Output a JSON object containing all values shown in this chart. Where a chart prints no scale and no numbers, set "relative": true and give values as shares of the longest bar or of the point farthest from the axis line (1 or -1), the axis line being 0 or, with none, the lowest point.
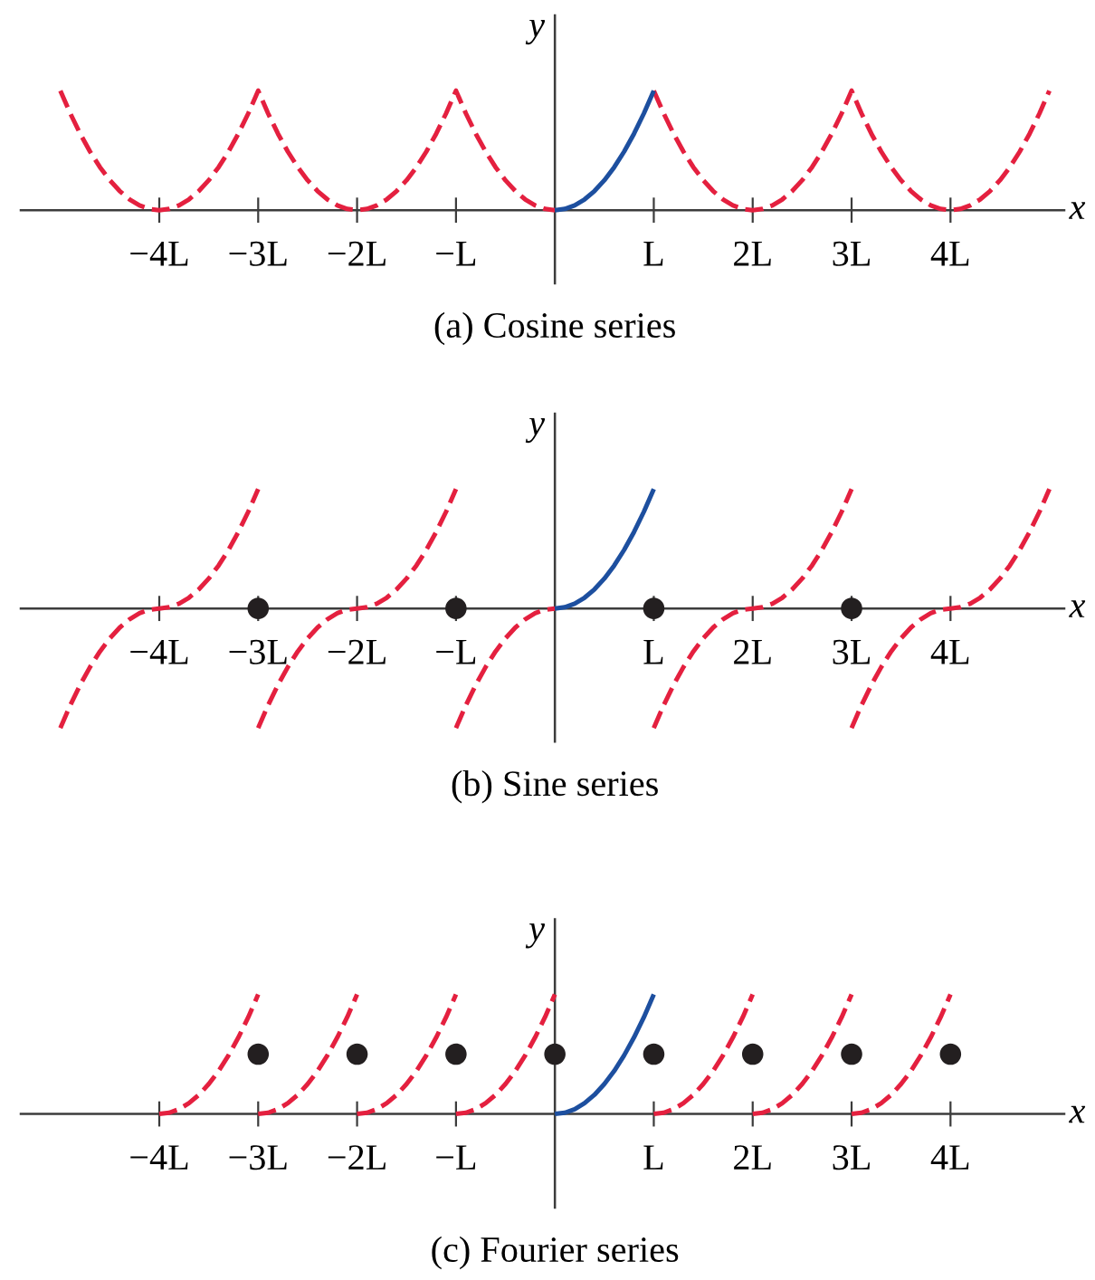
{
  "chart_data": [
    {
      "type": "line",
      "title": "(a) Cosine series",
      "xlabel": "x",
      "ylabel": "y",
      "relative": true,
      "tick_labels": "x",
      "xlim": [
        -5.4,
        5.15
      ],
      "xticks": [
        {
          "value": -4,
          "label": "−4L"
        },
        {
          "value": -3,
          "label": "−3L"
        },
        {
          "value": -2,
          "label": "−2L"
        },
        {
          "value": -1,
          "label": "−L"
        },
        {
          "value": 1,
          "label": "L"
        },
        {
          "value": 2,
          "label": "2L"
        },
        {
          "value": 3,
          "label": "3L"
        },
        {
          "value": 4,
          "label": "4L"
        }
      ],
      "series": [
        {
          "color": "#e4203f",
          "line_style": "dashed",
          "x": [
            -5,
            -4.9,
            -4.8,
            -4.7,
            -4.6,
            -4.5,
            -4.4,
            -4.3,
            -4.2,
            -4.1,
            -4,
            -3.9,
            -3.8,
            -3.7,
            -3.6,
            -3.5,
            -3.4,
            -3.3,
            -3.2,
            -3.1,
            -3,
            -2.9,
            -2.8,
            -2.7,
            -2.6,
            -2.5,
            -2.4,
            -2.3,
            -2.2,
            -2.1,
            -2,
            -1.9,
            -1.8,
            -1.7,
            -1.6,
            -1.5,
            -1.4,
            -1.3,
            -1.2,
            -1.1,
            -1,
            -0.9,
            -0.8,
            -0.7,
            -0.6,
            -0.5,
            -0.4,
            -0.3,
            -0.2,
            -0.1,
            0
          ],
          "values": [
            1,
            0.81,
            0.64,
            0.49,
            0.36,
            0.25,
            0.16,
            0.09,
            0.04,
            0.01,
            0,
            0.01,
            0.04,
            0.09,
            0.16,
            0.25,
            0.36,
            0.49,
            0.64,
            0.81,
            1,
            0.81,
            0.64,
            0.49,
            0.36,
            0.25,
            0.16,
            0.09,
            0.04,
            0.01,
            0,
            0.01,
            0.04,
            0.09,
            0.16,
            0.25,
            0.36,
            0.49,
            0.64,
            0.81,
            1,
            0.81,
            0.64,
            0.49,
            0.36,
            0.25,
            0.16,
            0.09,
            0.04,
            0.01,
            0
          ]
        },
        {
          "color": "#e4203f",
          "line_style": "dashed",
          "x": [
            1,
            1.1,
            1.2,
            1.3,
            1.4,
            1.5,
            1.6,
            1.7,
            1.8,
            1.9,
            2,
            2.1,
            2.2,
            2.3,
            2.4,
            2.5,
            2.6,
            2.7,
            2.8,
            2.9,
            3,
            3.1,
            3.2,
            3.3,
            3.4,
            3.5,
            3.6,
            3.7,
            3.8,
            3.9,
            4,
            4.1,
            4.2,
            4.3,
            4.4,
            4.5,
            4.6,
            4.7,
            4.8,
            4.9,
            5
          ],
          "values": [
            1,
            0.81,
            0.64,
            0.49,
            0.36,
            0.25,
            0.16,
            0.09,
            0.04,
            0.01,
            0,
            0.01,
            0.04,
            0.09,
            0.16,
            0.25,
            0.36,
            0.49,
            0.64,
            0.81,
            1,
            0.81,
            0.64,
            0.49,
            0.36,
            0.25,
            0.16,
            0.09,
            0.04,
            0.01,
            0,
            0.01,
            0.04,
            0.09,
            0.16,
            0.25,
            0.36,
            0.49,
            0.64,
            0.81,
            1
          ]
        },
        {
          "color": "#1d4f9f",
          "line_style": "solid",
          "x": [
            0,
            0.1,
            0.2,
            0.3,
            0.4,
            0.5,
            0.6,
            0.7,
            0.8,
            0.9,
            1
          ],
          "values": [
            0,
            0.01,
            0.04,
            0.09,
            0.16,
            0.25,
            0.36,
            0.49,
            0.64,
            0.81,
            1
          ]
        }
      ]
    },
    {
      "type": "line",
      "title": "(b) Sine series",
      "xlabel": "x",
      "ylabel": "y",
      "relative": true,
      "tick_labels": "x",
      "xlim": [
        -5.4,
        5.15
      ],
      "xticks": [
        {
          "value": -4,
          "label": "−4L"
        },
        {
          "value": -3,
          "label": "−3L"
        },
        {
          "value": -2,
          "label": "−2L"
        },
        {
          "value": -1,
          "label": "−L"
        },
        {
          "value": 1,
          "label": "L"
        },
        {
          "value": 2,
          "label": "2L"
        },
        {
          "value": 3,
          "label": "3L"
        },
        {
          "value": 4,
          "label": "4L"
        }
      ],
      "series": [
        {
          "color": "#e4203f",
          "line_style": "dashed",
          "x": [
            -5,
            -4.9,
            -4.8,
            -4.7,
            -4.6,
            -4.5,
            -4.4,
            -4.3,
            -4.2,
            -4.1,
            -4,
            -3.9,
            -3.8,
            -3.7,
            -3.6,
            -3.5,
            -3.4,
            -3.3,
            -3.2,
            -3.1,
            -3
          ],
          "values": [
            -1,
            -0.81,
            -0.64,
            -0.49,
            -0.36,
            -0.25,
            -0.16,
            -0.09,
            -0.04,
            -0.01,
            0,
            0.01,
            0.04,
            0.09,
            0.16,
            0.25,
            0.36,
            0.49,
            0.64,
            0.81,
            1
          ]
        },
        {
          "color": "#e4203f",
          "line_style": "dashed",
          "x": [
            -3,
            -2.9,
            -2.8,
            -2.7,
            -2.6,
            -2.5,
            -2.4,
            -2.3,
            -2.2,
            -2.1,
            -2,
            -1.9,
            -1.8,
            -1.7,
            -1.6,
            -1.5,
            -1.4,
            -1.3,
            -1.2,
            -1.1,
            -1
          ],
          "values": [
            -1,
            -0.81,
            -0.64,
            -0.49,
            -0.36,
            -0.25,
            -0.16,
            -0.09,
            -0.04,
            -0.01,
            0,
            0.01,
            0.04,
            0.09,
            0.16,
            0.25,
            0.36,
            0.49,
            0.64,
            0.81,
            1
          ]
        },
        {
          "color": "#e4203f",
          "line_style": "dashed",
          "x": [
            -1,
            -0.9,
            -0.8,
            -0.7,
            -0.6,
            -0.5,
            -0.4,
            -0.3,
            -0.2,
            -0.1,
            0
          ],
          "values": [
            -1,
            -0.81,
            -0.64,
            -0.49,
            -0.36,
            -0.25,
            -0.16,
            -0.09,
            -0.04,
            -0.01,
            0
          ]
        },
        {
          "color": "#e4203f",
          "line_style": "dashed",
          "x": [
            1,
            1.1,
            1.2,
            1.3,
            1.4,
            1.5,
            1.6,
            1.7,
            1.8,
            1.9,
            2,
            2.1,
            2.2,
            2.3,
            2.4,
            2.5,
            2.6,
            2.7,
            2.8,
            2.9,
            3
          ],
          "values": [
            -1,
            -0.81,
            -0.64,
            -0.49,
            -0.36,
            -0.25,
            -0.16,
            -0.09,
            -0.04,
            -0.01,
            0,
            0.01,
            0.04,
            0.09,
            0.16,
            0.25,
            0.36,
            0.49,
            0.64,
            0.81,
            1
          ]
        },
        {
          "color": "#e4203f",
          "line_style": "dashed",
          "x": [
            3,
            3.1,
            3.2,
            3.3,
            3.4,
            3.5,
            3.6,
            3.7,
            3.8,
            3.9,
            4,
            4.1,
            4.2,
            4.3,
            4.4,
            4.5,
            4.6,
            4.7,
            4.8,
            4.9,
            5
          ],
          "values": [
            -1,
            -0.81,
            -0.64,
            -0.49,
            -0.36,
            -0.25,
            -0.16,
            -0.09,
            -0.04,
            -0.01,
            0,
            0.01,
            0.04,
            0.09,
            0.16,
            0.25,
            0.36,
            0.49,
            0.64,
            0.81,
            1
          ]
        },
        {
          "color": "#1d4f9f",
          "line_style": "solid",
          "x": [
            0,
            0.1,
            0.2,
            0.3,
            0.4,
            0.5,
            0.6,
            0.7,
            0.8,
            0.9,
            1
          ],
          "values": [
            0,
            0.01,
            0.04,
            0.09,
            0.16,
            0.25,
            0.36,
            0.49,
            0.64,
            0.81,
            1
          ]
        },
        {
          "type": "scatter",
          "marker": "circle",
          "color": "#231f20",
          "x": [
            -3,
            -1,
            1,
            3
          ],
          "values": [
            0,
            0,
            0,
            0
          ]
        }
      ]
    },
    {
      "type": "line",
      "title": "(c) Fourier series",
      "xlabel": "x",
      "ylabel": "y",
      "relative": true,
      "tick_labels": "x",
      "xlim": [
        -5.4,
        5.15
      ],
      "xticks": [
        {
          "value": -4,
          "label": "−4L"
        },
        {
          "value": -3,
          "label": "−3L"
        },
        {
          "value": -2,
          "label": "−2L"
        },
        {
          "value": -1,
          "label": "−L"
        },
        {
          "value": 1,
          "label": "L"
        },
        {
          "value": 2,
          "label": "2L"
        },
        {
          "value": 3,
          "label": "3L"
        },
        {
          "value": 4,
          "label": "4L"
        }
      ],
      "series": [
        {
          "color": "#e4203f",
          "line_style": "dashed",
          "x": [
            -4,
            -3.9,
            -3.8,
            -3.7,
            -3.6,
            -3.5,
            -3.4,
            -3.3,
            -3.2,
            -3.1,
            -3
          ],
          "values": [
            0,
            0.01,
            0.04,
            0.09,
            0.16,
            0.25,
            0.36,
            0.49,
            0.64,
            0.81,
            1
          ]
        },
        {
          "color": "#e4203f",
          "line_style": "dashed",
          "x": [
            -3,
            -2.9,
            -2.8,
            -2.7,
            -2.6,
            -2.5,
            -2.4,
            -2.3,
            -2.2,
            -2.1,
            -2
          ],
          "values": [
            0,
            0.01,
            0.04,
            0.09,
            0.16,
            0.25,
            0.36,
            0.49,
            0.64,
            0.81,
            1
          ]
        },
        {
          "color": "#e4203f",
          "line_style": "dashed",
          "x": [
            -2,
            -1.9,
            -1.8,
            -1.7,
            -1.6,
            -1.5,
            -1.4,
            -1.3,
            -1.2,
            -1.1,
            -1
          ],
          "values": [
            0,
            0.01,
            0.04,
            0.09,
            0.16,
            0.25,
            0.36,
            0.49,
            0.64,
            0.81,
            1
          ]
        },
        {
          "color": "#e4203f",
          "line_style": "dashed",
          "x": [
            -1,
            -0.9,
            -0.8,
            -0.7,
            -0.6,
            -0.5,
            -0.4,
            -0.3,
            -0.2,
            -0.1,
            0
          ],
          "values": [
            0,
            0.01,
            0.04,
            0.09,
            0.16,
            0.25,
            0.36,
            0.49,
            0.64,
            0.81,
            1
          ]
        },
        {
          "color": "#e4203f",
          "line_style": "dashed",
          "x": [
            1,
            1.1,
            1.2,
            1.3,
            1.4,
            1.5,
            1.6,
            1.7,
            1.8,
            1.9,
            2
          ],
          "values": [
            0,
            0.01,
            0.04,
            0.09,
            0.16,
            0.25,
            0.36,
            0.49,
            0.64,
            0.81,
            1
          ]
        },
        {
          "color": "#e4203f",
          "line_style": "dashed",
          "x": [
            2,
            2.1,
            2.2,
            2.3,
            2.4,
            2.5,
            2.6,
            2.7,
            2.8,
            2.9,
            3
          ],
          "values": [
            0,
            0.01,
            0.04,
            0.09,
            0.16,
            0.25,
            0.36,
            0.49,
            0.64,
            0.81,
            1
          ]
        },
        {
          "color": "#e4203f",
          "line_style": "dashed",
          "x": [
            3,
            3.1,
            3.2,
            3.3,
            3.4,
            3.5,
            3.6,
            3.7,
            3.8,
            3.9,
            4
          ],
          "values": [
            0,
            0.01,
            0.04,
            0.09,
            0.16,
            0.25,
            0.36,
            0.49,
            0.64,
            0.81,
            1
          ]
        },
        {
          "color": "#1d4f9f",
          "line_style": "solid",
          "x": [
            0,
            0.1,
            0.2,
            0.3,
            0.4,
            0.5,
            0.6,
            0.7,
            0.8,
            0.9,
            1
          ],
          "values": [
            0,
            0.01,
            0.04,
            0.09,
            0.16,
            0.25,
            0.36,
            0.49,
            0.64,
            0.81,
            1
          ]
        },
        {
          "type": "scatter",
          "marker": "circle",
          "color": "#231f20",
          "x": [
            -3,
            -2,
            -1,
            0,
            1,
            2,
            3,
            4
          ],
          "values": [
            0.5,
            0.5,
            0.5,
            0.5,
            0.5,
            0.5,
            0.5,
            0.5
          ]
        }
      ]
    }
  ]
}
